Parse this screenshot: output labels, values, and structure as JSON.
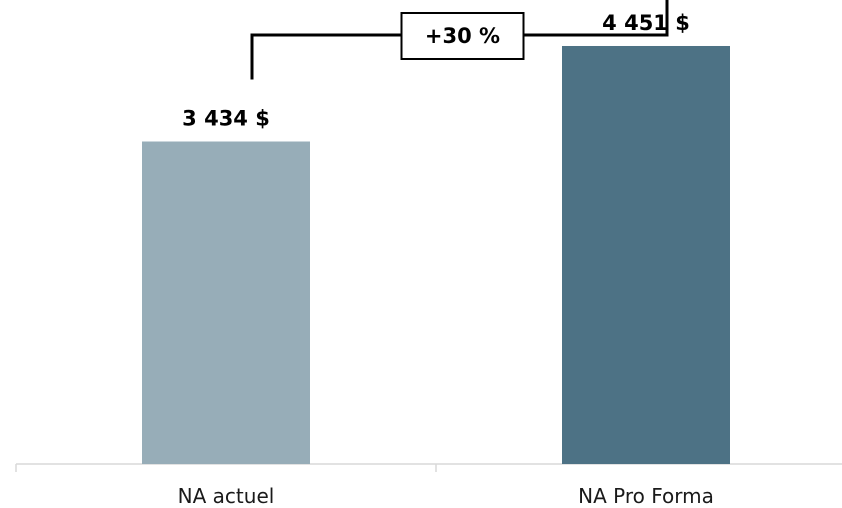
{
  "chart_data": {
    "type": "bar",
    "categories": [
      "NA actuel",
      "NA Pro Forma"
    ],
    "values": [
      3434,
      4451
    ],
    "data_labels": [
      "3 434 $",
      "4 451 $"
    ],
    "colors": [
      "#97adb8",
      "#4d7285"
    ],
    "annotation": {
      "label": "+30 %"
    },
    "title": "",
    "xlabel": "",
    "ylabel": "",
    "ylim": [
      0,
      4600
    ],
    "grid": false,
    "legend": "none"
  }
}
